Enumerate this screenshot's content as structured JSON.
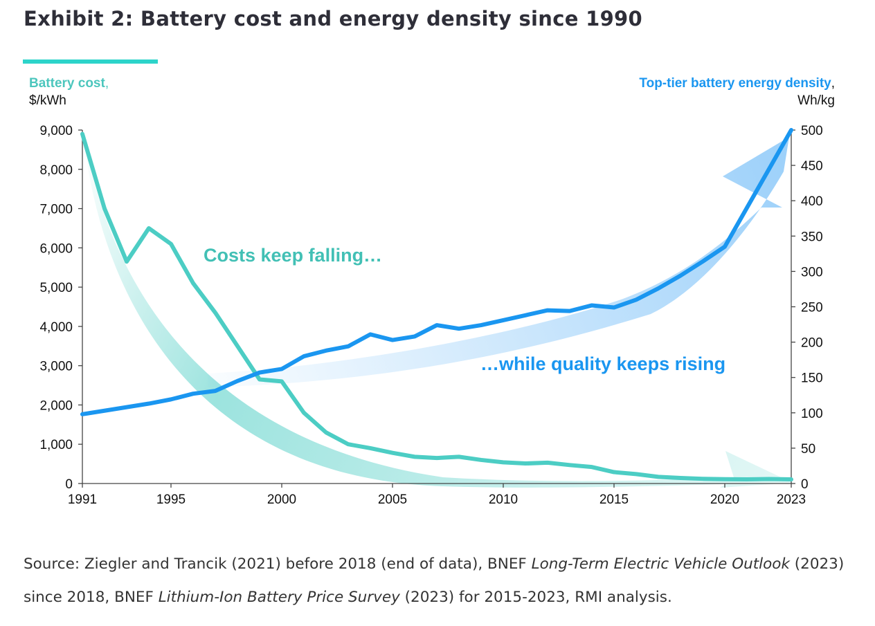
{
  "page": {
    "title": "Exhibit 2: Battery cost and energy density since 1990",
    "source_parts": [
      {
        "text": "Source: Ziegler and Trancik (2021) before 2018 (end of data), BNEF ",
        "italic": false
      },
      {
        "text": "Long-Term Electric Vehicle Outlook",
        "italic": true
      },
      {
        "text": " (2023) since 2018, BNEF ",
        "italic": false
      },
      {
        "text": "Lithium-Ion Battery Price Survey",
        "italic": true
      },
      {
        "text": " (2023) for 2015-2023, RMI analysis.",
        "italic": false
      }
    ]
  },
  "chart_data": {
    "type": "line",
    "title": "Exhibit 2: Battery cost and energy density since 1990",
    "x": [
      1991,
      1992,
      1993,
      1994,
      1995,
      1996,
      1997,
      1998,
      1999,
      2000,
      2001,
      2002,
      2003,
      2004,
      2005,
      2006,
      2007,
      2008,
      2009,
      2010,
      2011,
      2012,
      2013,
      2014,
      2015,
      2016,
      2017,
      2018,
      2019,
      2020,
      2021,
      2022,
      2023
    ],
    "xlim": [
      1991,
      2023
    ],
    "x_ticks": [
      1991,
      1995,
      2000,
      2005,
      2010,
      2015,
      2020,
      2023
    ],
    "y_left": {
      "label": "Battery cost",
      "label_suffix": ",",
      "unit": "$/kWh",
      "lim": [
        0,
        9000
      ],
      "ticks": [
        0,
        1000,
        2000,
        3000,
        4000,
        5000,
        6000,
        7000,
        8000,
        9000
      ],
      "tick_labels": [
        "0",
        "1,000",
        "2,000",
        "3,000",
        "4,000",
        "5,000",
        "6,000",
        "7,000",
        "8,000",
        "9,000"
      ]
    },
    "y_right": {
      "label": "Top-tier battery energy density",
      "label_suffix": ",",
      "unit": "Wh/kg",
      "lim": [
        0,
        500
      ],
      "ticks": [
        0,
        50,
        100,
        150,
        200,
        250,
        300,
        350,
        400,
        450,
        500
      ],
      "tick_labels": [
        "0",
        "50",
        "100",
        "150",
        "200",
        "250",
        "300",
        "350",
        "400",
        "450",
        "500"
      ]
    },
    "series": [
      {
        "name": "Battery cost",
        "axis": "left",
        "color": "#4ccdc4",
        "values": [
          8900,
          7000,
          5650,
          6500,
          6100,
          5100,
          4350,
          3500,
          2650,
          2600,
          1800,
          1300,
          1000,
          900,
          780,
          680,
          650,
          680,
          600,
          540,
          510,
          530,
          470,
          420,
          290,
          240,
          170,
          140,
          120,
          110,
          105,
          115,
          105
        ]
      },
      {
        "name": "Top-tier battery energy density",
        "axis": "right",
        "color": "#1a96f0",
        "values": [
          98,
          103,
          108,
          113,
          119,
          127,
          131,
          145,
          157,
          162,
          180,
          188,
          194,
          211,
          203,
          208,
          224,
          219,
          224,
          231,
          238,
          245,
          244,
          252,
          249,
          260,
          276,
          294,
          314,
          335,
          390,
          445,
          500
        ]
      }
    ],
    "annotations": {
      "cost": "Costs keep falling…",
      "density": "…while quality keeps rising"
    },
    "colors": {
      "cost_arrow_start": "#4ccdc4",
      "density_arrow_start": "#2196f3"
    }
  }
}
